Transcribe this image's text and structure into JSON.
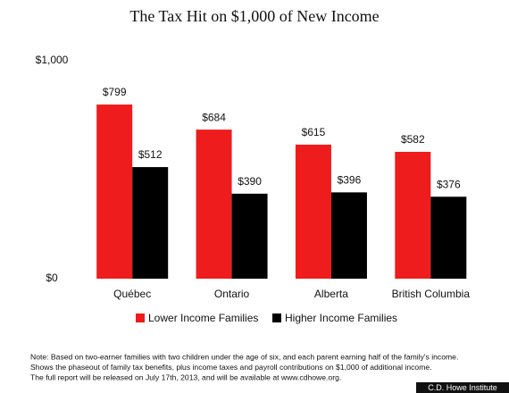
{
  "chart_data": {
    "type": "bar",
    "title": "The Tax Hit on $1,000 of New Income",
    "categories": [
      "Québec",
      "Ontario",
      "Alberta",
      "British Columbia"
    ],
    "series": [
      {
        "name": "Lower Income Families",
        "color": "#ee1c1c",
        "values": [
          799,
          684,
          615,
          582
        ],
        "value_labels": [
          "$799",
          "$684",
          "$615",
          "$582"
        ]
      },
      {
        "name": "Higher Income Families",
        "color": "#000000",
        "values": [
          512,
          390,
          396,
          376
        ],
        "value_labels": [
          "$512",
          "$390",
          "$396",
          "$376"
        ]
      }
    ],
    "ylim": [
      0,
      1000
    ],
    "yticks": [
      {
        "value": 0,
        "label": "$0"
      },
      {
        "value": 1000,
        "label": "$1,000"
      }
    ],
    "grid": false,
    "legend": "bottom",
    "note": [
      "Note: Based on two-earner families with two children under the age of six, and each parent earning half of the family's income.",
      "Shows the phaseout of family tax benefits, plus income taxes and payroll contributions on $1,000 of additional income.",
      "The full report will be released on July 17th, 2013, and will be available at www.cdhowe.org."
    ],
    "credit": "C.D. Howe Institute"
  }
}
